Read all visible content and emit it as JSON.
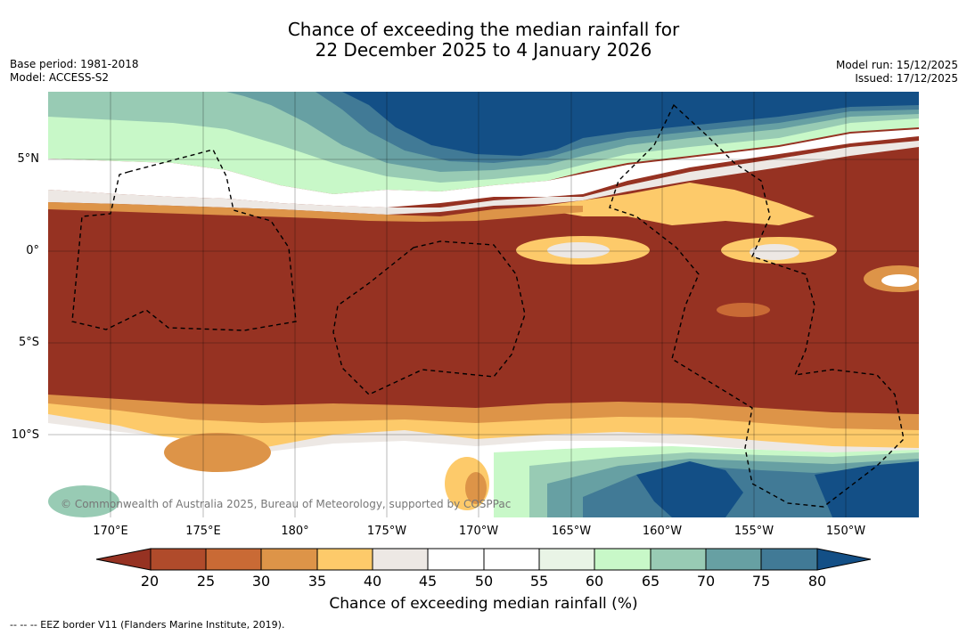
{
  "title": {
    "line1": "Chance of exceeding the median rainfall for",
    "line2": "22 December 2025 to 4 January 2026"
  },
  "meta": {
    "base_period": "Base period: 1981-2018",
    "model": "Model: ACCESS-S2",
    "model_run": "Model run: 15/12/2025",
    "issued": "Issued: 17/12/2025"
  },
  "map": {
    "lat_labels": [
      "5°N",
      "0°",
      "5°S",
      "10°S"
    ],
    "lon_labels": [
      "170°E",
      "175°E",
      "180°",
      "175°W",
      "170°W",
      "165°W",
      "160°W",
      "155°W",
      "150°W"
    ],
    "copyright": "© Commonwealth of Australia 2025, Bureau of Meteorology, supported by COSPPac",
    "palette": {
      "band_20": "#963222",
      "band_25": "#b04b2b",
      "band_30": "#c96a35",
      "band_35": "#dd9448",
      "band_40": "#fdca6a",
      "band_45": "#ede8e4",
      "band_50": "#ffffff",
      "band_55": "#ffffff",
      "band_60": "#e9f4e6",
      "band_65": "#c8f8c8",
      "band_70": "#98cbb4",
      "band_75": "#67a0a3",
      "band_80": "#417a96",
      "band_max": "#134f86",
      "ocean_dry": "#963222",
      "border": "#000000"
    }
  },
  "colorbar": {
    "ticks": [
      "20",
      "25",
      "30",
      "35",
      "40",
      "45",
      "50",
      "55",
      "60",
      "65",
      "70",
      "75",
      "80"
    ],
    "title": "Chance of exceeding median rainfall (%)"
  },
  "footer": {
    "legend": "--  --  -- EEZ border V11 (Flanders Marine Institute, 2019)."
  }
}
